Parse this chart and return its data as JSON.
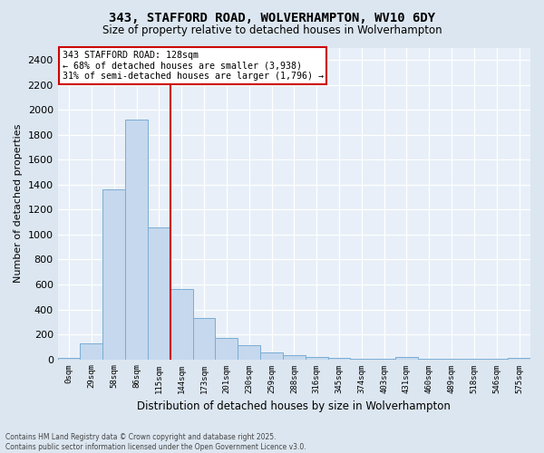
{
  "title": "343, STAFFORD ROAD, WOLVERHAMPTON, WV10 6DY",
  "subtitle": "Size of property relative to detached houses in Wolverhampton",
  "xlabel": "Distribution of detached houses by size in Wolverhampton",
  "ylabel": "Number of detached properties",
  "bin_labels": [
    "0sqm",
    "29sqm",
    "58sqm",
    "86sqm",
    "115sqm",
    "144sqm",
    "173sqm",
    "201sqm",
    "230sqm",
    "259sqm",
    "288sqm",
    "316sqm",
    "345sqm",
    "374sqm",
    "403sqm",
    "431sqm",
    "460sqm",
    "489sqm",
    "518sqm",
    "546sqm",
    "575sqm"
  ],
  "bar_values": [
    10,
    130,
    1360,
    1920,
    1060,
    560,
    330,
    170,
    110,
    55,
    30,
    20,
    10,
    5,
    5,
    15,
    5,
    5,
    5,
    5,
    10
  ],
  "bar_color": "#c5d8ee",
  "bar_edge_color": "#7aadd4",
  "vline_x": 4.52,
  "vline_color": "#cc0000",
  "ylim": [
    0,
    2500
  ],
  "yticks": [
    0,
    200,
    400,
    600,
    800,
    1000,
    1200,
    1400,
    1600,
    1800,
    2000,
    2200,
    2400
  ],
  "annotation_title": "343 STAFFORD ROAD: 128sqm",
  "annotation_line1": "← 68% of detached houses are smaller (3,938)",
  "annotation_line2": "31% of semi-detached houses are larger (1,796) →",
  "annotation_box_color": "#ffffff",
  "annotation_box_edge_color": "#cc0000",
  "footer_line1": "Contains HM Land Registry data © Crown copyright and database right 2025.",
  "footer_line2": "Contains public sector information licensed under the Open Government Licence v3.0.",
  "bg_color": "#dce6f0",
  "plot_bg_color": "#e8eff8"
}
